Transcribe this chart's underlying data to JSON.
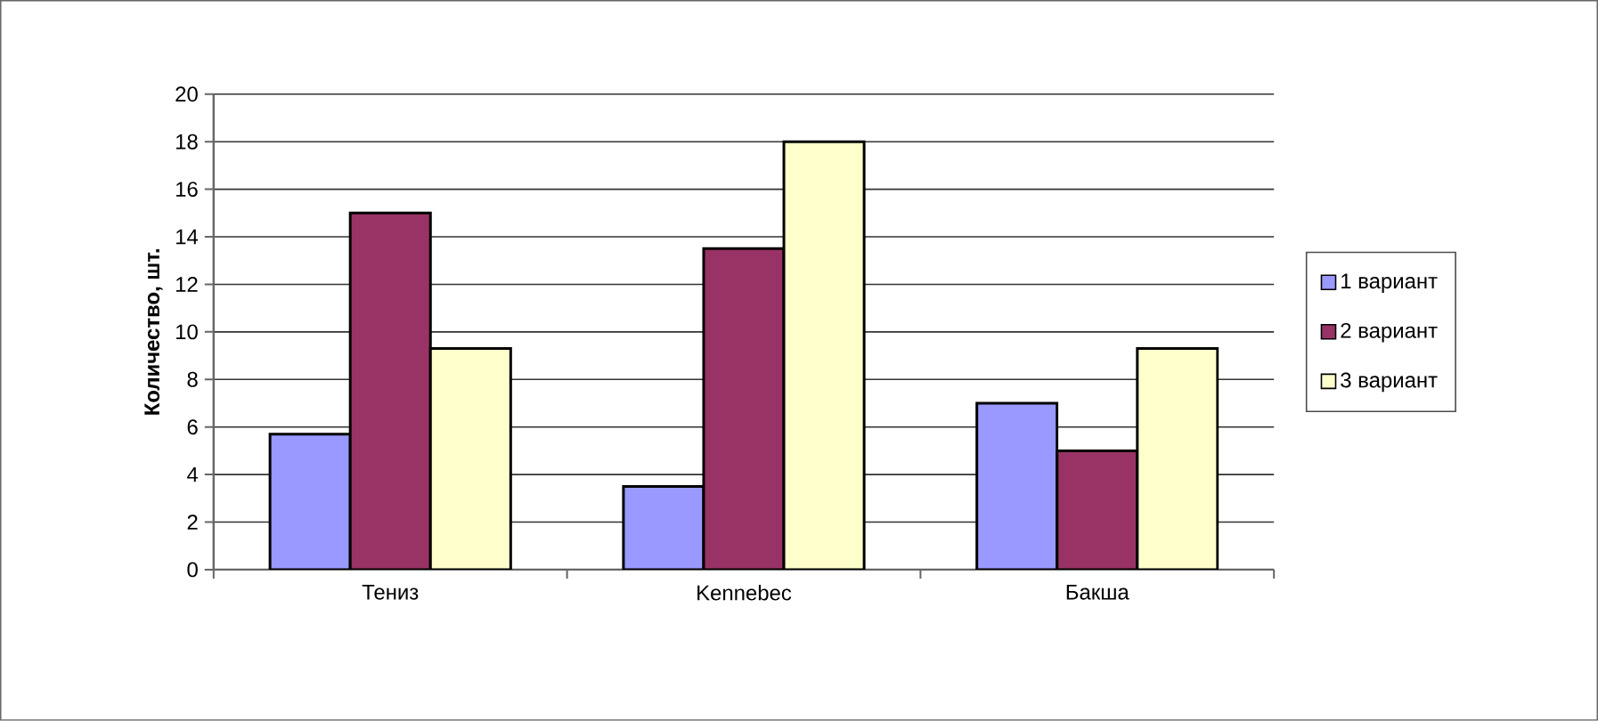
{
  "chart_data": {
    "type": "bar",
    "ylabel": "**Количество, шт.**",
    "categories": [
      "Тениз",
      "Kennebec",
      "Бакша"
    ],
    "series": [
      {
        "name": "1 вариант",
        "color": "#9999ff",
        "values": [
          5.7,
          3.5,
          7
        ]
      },
      {
        "name": "2 вариант",
        "color": "#993366",
        "values": [
          15,
          13.5,
          5
        ]
      },
      {
        "name": "3 вариант",
        "color": "#ffffcc",
        "values": [
          9.3,
          18,
          9.3
        ]
      }
    ],
    "ylim": [
      0,
      20
    ],
    "yticks": [
      0,
      2,
      4,
      6,
      8,
      10,
      12,
      14,
      16,
      18,
      20
    ],
    "grid": "y",
    "legend": "right"
  }
}
